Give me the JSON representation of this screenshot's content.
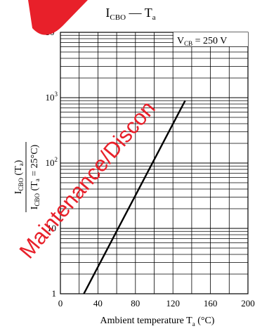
{
  "title": {
    "main": "I",
    "sub1": "CBO",
    "dash": " — T",
    "sub2": "a"
  },
  "watermark": {
    "text": "Maintenance/Discon",
    "color": "#e8202a"
  },
  "annotation": {
    "main": "V",
    "sub": "CB",
    "rest": " = 250 V"
  },
  "ylabel": {
    "num_main": "I",
    "num_sub": "CBO",
    "num_rest": " (T",
    "num_sub2": "a",
    "num_close": ")",
    "den_main": "I",
    "den_sub": "CBO",
    "den_rest": " (T",
    "den_sub2": "a",
    "den_close": " = 25°C)"
  },
  "xlabel": {
    "main": "Ambient temperature  T",
    "sub": "a",
    "rest": "  (°C)"
  },
  "chart_data": {
    "type": "line",
    "title": "ICBO — Ta",
    "xlabel": "Ambient temperature Ta (°C)",
    "ylabel": "ICBO (Ta) / ICBO (Ta = 25°C)",
    "xlim": [
      0,
      200
    ],
    "ylim": [
      1,
      10000
    ],
    "yscale": "log",
    "grid": true,
    "x_ticks": [
      0,
      40,
      80,
      120,
      160,
      200
    ],
    "x_tick_labels": [
      "0",
      "40",
      "80",
      "120",
      "160",
      "200"
    ],
    "y_ticks": [
      1,
      10,
      100,
      1000,
      10000
    ],
    "y_tick_labels": [
      "1",
      "10",
      "10²",
      "10³",
      "10⁴"
    ],
    "annotation": "VCB = 250 V",
    "series": [
      {
        "x": [
          25,
          133
        ],
        "y": [
          1,
          900
        ]
      }
    ]
  }
}
